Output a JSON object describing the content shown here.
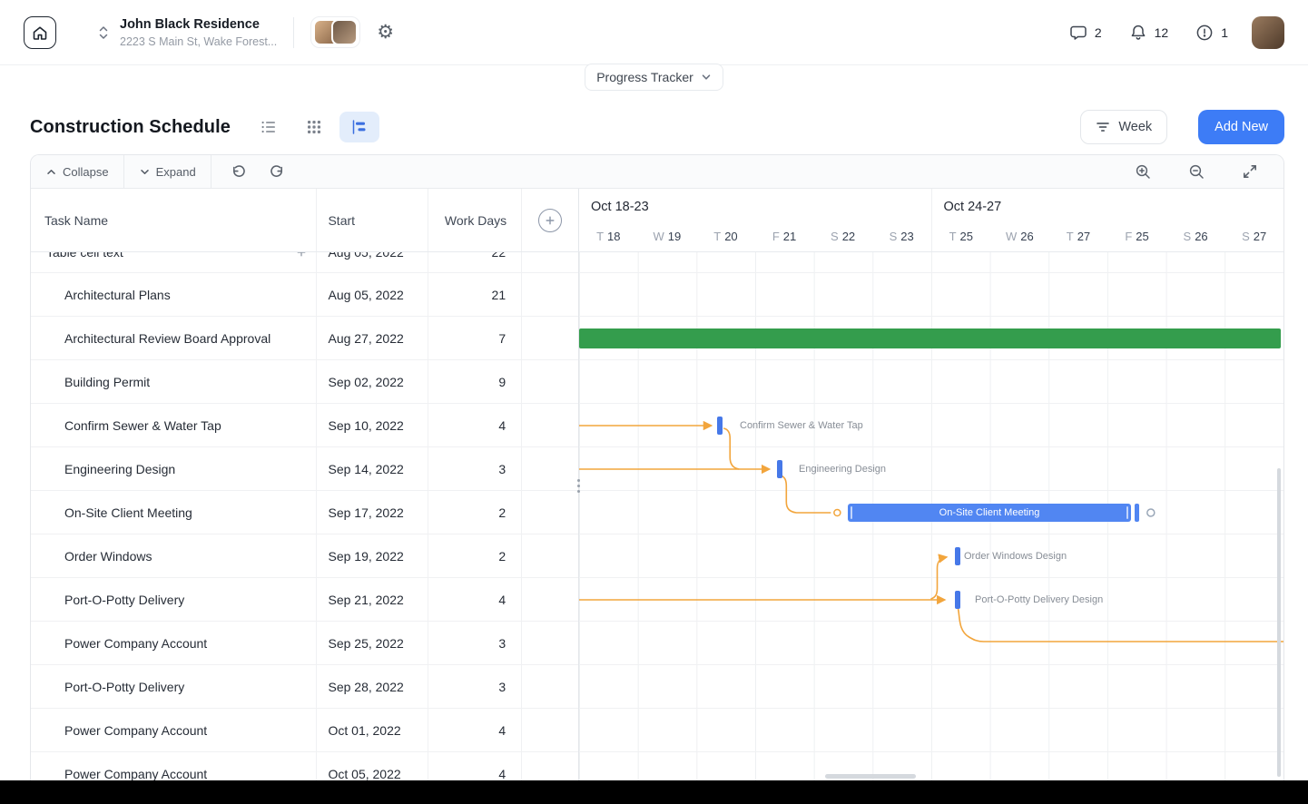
{
  "colors": {
    "accent_blue": "#3D7CF6",
    "gantt_green": "#349D4D",
    "gantt_blue": "#5186F2",
    "milestone_blue": "#4678E8",
    "connector_orange": "#F2A53C"
  },
  "header": {
    "project": {
      "name": "John Black Residence",
      "address": "2223 S Main St, Wake Forest..."
    },
    "counters": {
      "messages": "2",
      "notifications": "12",
      "alerts": "1"
    }
  },
  "progress_tracker": {
    "label": "Progress Tracker"
  },
  "page": {
    "title": "Construction Schedule"
  },
  "filters": {
    "week_label": "Week"
  },
  "actions": {
    "add_new": "Add New"
  },
  "toolbar": {
    "collapse": "Collapse",
    "expand": "Expand"
  },
  "table": {
    "columns": {
      "task": "Task Name",
      "start": "Start",
      "days": "Work Days"
    },
    "partial_row": {
      "task": "Table cell text",
      "start": "Aug 05, 2022",
      "days": "22"
    },
    "rows": [
      {
        "task": "Architectural Plans",
        "start": "Aug 05, 2022",
        "days": "21"
      },
      {
        "task": "Architectural Review Board Approval",
        "start": "Aug 27, 2022",
        "days": "7"
      },
      {
        "task": "Building Permit",
        "start": "Sep 02, 2022",
        "days": "9"
      },
      {
        "task": "Confirm Sewer & Water Tap",
        "start": "Sep 10, 2022",
        "days": "4"
      },
      {
        "task": "Engineering Design",
        "start": "Sep 14, 2022",
        "days": "3"
      },
      {
        "task": "On-Site Client Meeting",
        "start": "Sep 17, 2022",
        "days": "2"
      },
      {
        "task": "Order Windows",
        "start": "Sep 19, 2022",
        "days": "2"
      },
      {
        "task": "Port-O-Potty Delivery",
        "start": "Sep 21, 2022",
        "days": "4"
      },
      {
        "task": "Power Company Account",
        "start": "Sep 25, 2022",
        "days": "3"
      },
      {
        "task": "Port-O-Potty Delivery",
        "start": "Sep 28, 2022",
        "days": "3"
      },
      {
        "task": "Power Company Account",
        "start": "Oct 01, 2022",
        "days": "4"
      },
      {
        "task": "Power Company Account",
        "start": "Oct 05, 2022",
        "days": "4"
      }
    ]
  },
  "gantt": {
    "groups": [
      {
        "label": "Oct 18-23"
      },
      {
        "label": "Oct 24-27"
      }
    ],
    "days": [
      {
        "dow": "T",
        "date": "18"
      },
      {
        "dow": "W",
        "date": "19"
      },
      {
        "dow": "T",
        "date": "20"
      },
      {
        "dow": "F",
        "date": "21"
      },
      {
        "dow": "S",
        "date": "22"
      },
      {
        "dow": "S",
        "date": "23"
      },
      {
        "dow": "T",
        "date": "25"
      },
      {
        "dow": "W",
        "date": "26"
      },
      {
        "dow": "T",
        "date": "27"
      },
      {
        "dow": "F",
        "date": "25"
      },
      {
        "dow": "S",
        "date": "26"
      },
      {
        "dow": "S",
        "date": "27"
      }
    ],
    "bars": {
      "meeting": {
        "label": "On-Site Client Meeting"
      }
    },
    "milestone_labels": {
      "confirm": "Confirm Sewer & Water Tap",
      "engineering": "Engineering Design",
      "order_windows": "Order Windows Design",
      "port_o_potty": "Port-O-Potty Delivery Design"
    }
  }
}
